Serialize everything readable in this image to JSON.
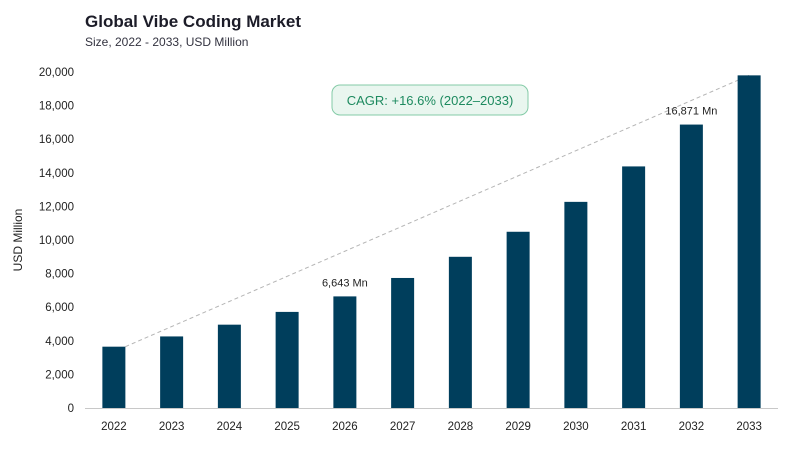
{
  "chart_data": {
    "type": "bar",
    "title": "Global Vibe Coding Market",
    "subtitle": "Size, 2022 - 2033, USD Million",
    "ylabel": "USD Million",
    "xlabel": "",
    "categories": [
      "2022",
      "2023",
      "2024",
      "2025",
      "2026",
      "2027",
      "2028",
      "2029",
      "2030",
      "2031",
      "2032",
      "2033"
    ],
    "values": [
      3650,
      4260,
      4960,
      5720,
      6643,
      7740,
      9000,
      10490,
      12270,
      14380,
      16871,
      19800
    ],
    "ylim": [
      0,
      20000
    ],
    "yticks": [
      "0",
      "2,000",
      "4,000",
      "6,000",
      "8,000",
      "10,000",
      "12,000",
      "14,000",
      "16,000",
      "18,000",
      "20,000"
    ],
    "annotations": {
      "label_2026": "6,643 Mn",
      "label_2032": "16,871 Mn",
      "cagr": "CAGR: +16.6% (2022–2033)"
    },
    "grid": false,
    "trendline": "dashed, from 2022 bar top to 2033 bar top",
    "colors": {
      "bar": "#003e5c",
      "trend": "#b5b5b5",
      "cagr_fill": "#e9f6ef",
      "cagr_stroke": "#84cba7",
      "cagr_text": "#1d8a5f"
    }
  }
}
